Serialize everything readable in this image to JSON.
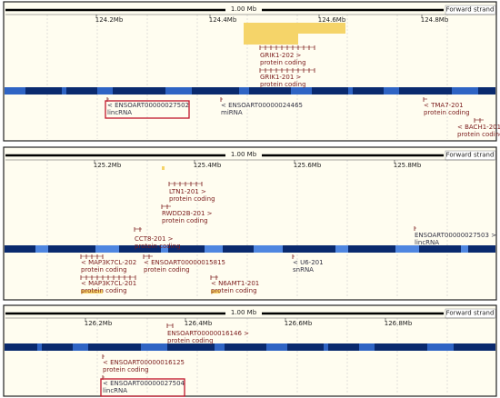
{
  "panels": [
    {
      "scale": "1.00 Mb",
      "strand": "Forward strand",
      "ticks": [
        "124.2Mb",
        "124.4Mb",
        "124.6Mb",
        "124.8Mb"
      ],
      "genes": [
        {
          "name": "GRIK1-202 >",
          "biotype": "protein coding"
        },
        {
          "name": "GRIK1-201 >",
          "biotype": "protein coding"
        },
        {
          "name": "< ENSOART00000027502",
          "biotype": "lincRNA"
        },
        {
          "name": "< ENSOART00000024465",
          "biotype": "miRNA"
        },
        {
          "name": "< TMA7-201",
          "biotype": "protein coding"
        },
        {
          "name": "< BACH1-201",
          "biotype": "protein coding"
        }
      ]
    },
    {
      "scale": "1.00 Mb",
      "strand": "Forward strand",
      "ticks": [
        "125.2Mb",
        "125.4Mb",
        "125.6Mb",
        "125.8Mb"
      ],
      "genes": [
        {
          "name": "LTN1-201 >",
          "biotype": "protein coding"
        },
        {
          "name": "RWDD2B-201 >",
          "biotype": "protein coding"
        },
        {
          "name": "CCT8-201 >",
          "biotype": "protein coding"
        },
        {
          "name": "ENSOART00000027503 >",
          "biotype": "lincRNA"
        },
        {
          "name": "< MAP3K7CL-202",
          "biotype": "protein coding"
        },
        {
          "name": "< ENSOART00000015815",
          "biotype": "protein coding"
        },
        {
          "name": "< U6-201",
          "biotype": "snRNA"
        },
        {
          "name": "< MAP3K7CL-201",
          "biotype": "protein coding"
        },
        {
          "name": "< N6AMT1-201",
          "biotype": "protein coding"
        }
      ]
    },
    {
      "scale": "1.00 Mb",
      "strand": "Forward strand",
      "ticks": [
        "126.2Mb",
        "126.4Mb",
        "126.6Mb",
        "126.8Mb"
      ],
      "genes": [
        {
          "name": "ENSOART00000016146 >",
          "biotype": "protein coding"
        },
        {
          "name": "< ENSOART00000016125",
          "biotype": "protein coding"
        },
        {
          "name": "< ENSOART00000027504",
          "biotype": "lincRNA"
        }
      ]
    }
  ]
}
